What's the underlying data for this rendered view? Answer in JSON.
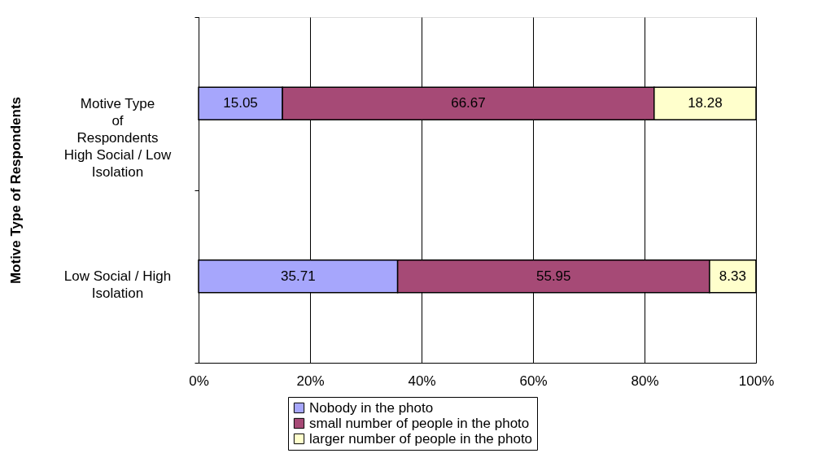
{
  "chart_data": {
    "type": "bar",
    "orientation": "horizontal",
    "stacked": true,
    "ylabel": "Motive Type of Respondents",
    "categories": [
      "Motive Type\nof\nRespondents\nHigh Social / Low\nIsolation",
      "Low Social / High\nIsolation"
    ],
    "series": [
      {
        "name": "Nobody in the photo",
        "color": "#a6a6fc",
        "values": [
          15.05,
          35.71
        ]
      },
      {
        "name": "small number of people in the photo",
        "color": "#a64a76",
        "values": [
          66.67,
          55.95
        ]
      },
      {
        "name": "larger number of people in the photo",
        "color": "#ffffcc",
        "values": [
          18.28,
          8.33
        ]
      }
    ],
    "xlim": [
      0,
      100
    ],
    "xticks": [
      {
        "value": 0,
        "label": "0%"
      },
      {
        "value": 20,
        "label": "20%"
      },
      {
        "value": 40,
        "label": "40%"
      },
      {
        "value": 60,
        "label": "60%"
      },
      {
        "value": 80,
        "label": "80%"
      },
      {
        "value": 100,
        "label": "100%"
      }
    ],
    "grid": "x",
    "legend": "bottom",
    "data_labels": true
  }
}
